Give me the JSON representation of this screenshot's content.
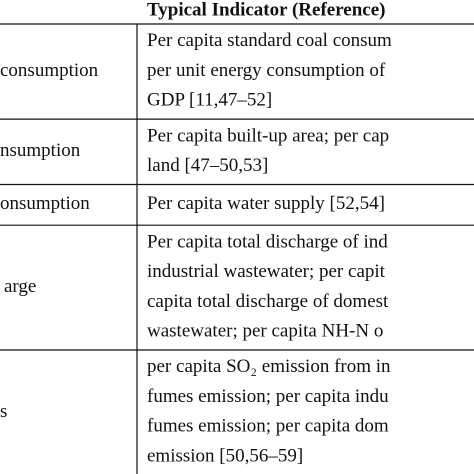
{
  "table": {
    "header": [
      "Typical Indicator (Reference)"
    ],
    "rows": [
      {
        "left": "consumption",
        "lines": [
          "Per capita standard coal consum",
          "per unit energy consumption of",
          "GDP [11,47–52]"
        ]
      },
      {
        "left": "nsumption",
        "lines": [
          "Per capita built-up area; per cap",
          "land [47–50,53]"
        ]
      },
      {
        "left": "onsumption",
        "lines": [
          "Per capita water supply [52,54]"
        ]
      },
      {
        "left": "arge",
        "lines": [
          "Per capita total discharge of ind",
          "industrial wastewater; per capit",
          "capita total discharge of domest",
          "wastewater; per capita NH-N o"
        ]
      },
      {
        "left": "s",
        "lines": [
          "per capita SO₂ emission from in",
          "fumes emission; per capita indu",
          "fumes emission; per capita dom",
          "emission [50,56–59]"
        ]
      }
    ]
  }
}
